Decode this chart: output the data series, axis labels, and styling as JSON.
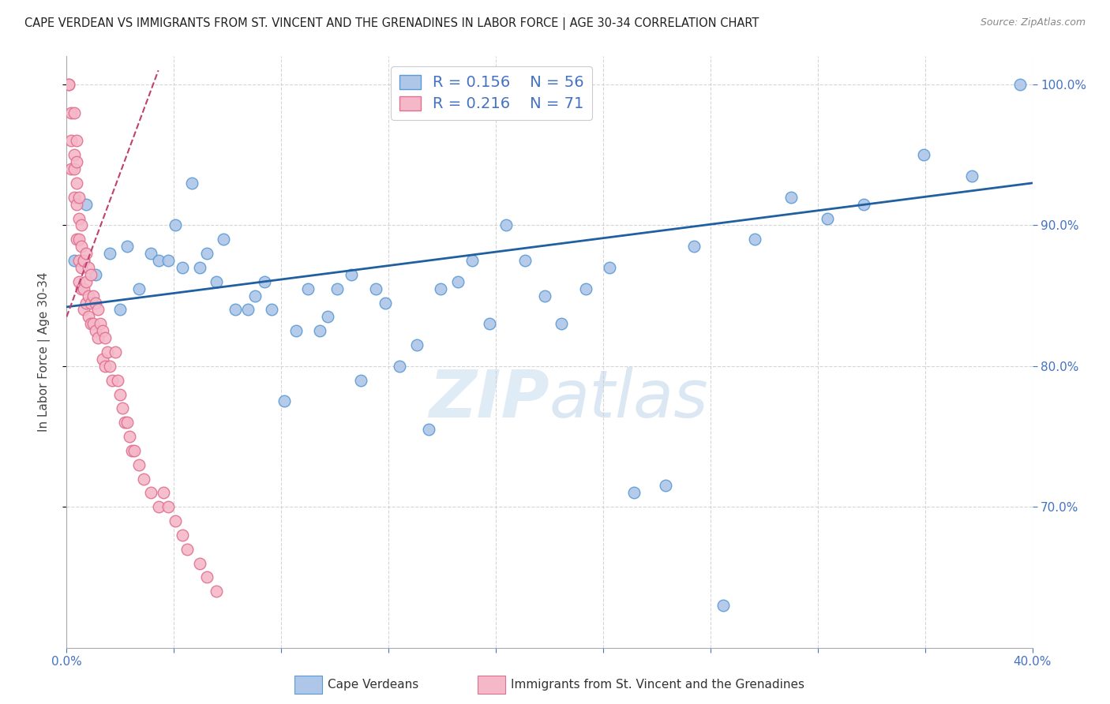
{
  "title": "CAPE VERDEAN VS IMMIGRANTS FROM ST. VINCENT AND THE GRENADINES IN LABOR FORCE | AGE 30-34 CORRELATION CHART",
  "source": "Source: ZipAtlas.com",
  "ylabel": "In Labor Force | Age 30-34",
  "xlim": [
    0.0,
    0.4
  ],
  "ylim": [
    0.6,
    1.02
  ],
  "watermark_zip": "ZIP",
  "watermark_atlas": "atlas",
  "legend_R1": "0.156",
  "legend_N1": "56",
  "legend_R2": "0.216",
  "legend_N2": "71",
  "blue_color": "#aec6e8",
  "blue_edge": "#5b9bd5",
  "pink_color": "#f4b8c8",
  "pink_edge": "#e07090",
  "trend_blue": "#2060a0",
  "trend_pink": "#c04070",
  "blue_scatter_x": [
    0.003,
    0.008,
    0.012,
    0.018,
    0.022,
    0.025,
    0.03,
    0.035,
    0.038,
    0.042,
    0.045,
    0.048,
    0.052,
    0.055,
    0.058,
    0.062,
    0.065,
    0.07,
    0.075,
    0.078,
    0.082,
    0.085,
    0.09,
    0.095,
    0.1,
    0.105,
    0.108,
    0.112,
    0.118,
    0.122,
    0.128,
    0.132,
    0.138,
    0.145,
    0.15,
    0.155,
    0.162,
    0.168,
    0.175,
    0.182,
    0.19,
    0.198,
    0.205,
    0.215,
    0.225,
    0.235,
    0.248,
    0.26,
    0.272,
    0.285,
    0.3,
    0.315,
    0.33,
    0.355,
    0.375,
    0.395
  ],
  "blue_scatter_y": [
    0.875,
    0.915,
    0.865,
    0.88,
    0.84,
    0.885,
    0.855,
    0.88,
    0.875,
    0.875,
    0.9,
    0.87,
    0.93,
    0.87,
    0.88,
    0.86,
    0.89,
    0.84,
    0.84,
    0.85,
    0.86,
    0.84,
    0.775,
    0.825,
    0.855,
    0.825,
    0.835,
    0.855,
    0.865,
    0.79,
    0.855,
    0.845,
    0.8,
    0.815,
    0.755,
    0.855,
    0.86,
    0.875,
    0.83,
    0.9,
    0.875,
    0.85,
    0.83,
    0.855,
    0.87,
    0.71,
    0.715,
    0.885,
    0.63,
    0.89,
    0.92,
    0.905,
    0.915,
    0.95,
    0.935,
    1.0
  ],
  "pink_scatter_x": [
    0.001,
    0.001,
    0.002,
    0.002,
    0.002,
    0.003,
    0.003,
    0.003,
    0.003,
    0.004,
    0.004,
    0.004,
    0.004,
    0.004,
    0.005,
    0.005,
    0.005,
    0.005,
    0.005,
    0.006,
    0.006,
    0.006,
    0.006,
    0.007,
    0.007,
    0.007,
    0.007,
    0.008,
    0.008,
    0.008,
    0.009,
    0.009,
    0.009,
    0.01,
    0.01,
    0.01,
    0.011,
    0.011,
    0.012,
    0.012,
    0.013,
    0.013,
    0.014,
    0.015,
    0.015,
    0.016,
    0.016,
    0.017,
    0.018,
    0.019,
    0.02,
    0.021,
    0.022,
    0.023,
    0.024,
    0.025,
    0.026,
    0.027,
    0.028,
    0.03,
    0.032,
    0.035,
    0.038,
    0.04,
    0.042,
    0.045,
    0.048,
    0.05,
    0.055,
    0.058,
    0.062
  ],
  "pink_scatter_y": [
    1.0,
    1.0,
    0.98,
    0.96,
    0.94,
    0.98,
    0.95,
    0.94,
    0.92,
    0.96,
    0.945,
    0.93,
    0.915,
    0.89,
    0.92,
    0.905,
    0.89,
    0.875,
    0.86,
    0.9,
    0.885,
    0.87,
    0.855,
    0.875,
    0.875,
    0.855,
    0.84,
    0.88,
    0.86,
    0.845,
    0.87,
    0.85,
    0.835,
    0.865,
    0.845,
    0.83,
    0.85,
    0.83,
    0.845,
    0.825,
    0.84,
    0.82,
    0.83,
    0.825,
    0.805,
    0.82,
    0.8,
    0.81,
    0.8,
    0.79,
    0.81,
    0.79,
    0.78,
    0.77,
    0.76,
    0.76,
    0.75,
    0.74,
    0.74,
    0.73,
    0.72,
    0.71,
    0.7,
    0.71,
    0.7,
    0.69,
    0.68,
    0.67,
    0.66,
    0.65,
    0.64
  ],
  "num_xticks": 10,
  "title_fontsize": 10.5,
  "source_fontsize": 9,
  "axis_label_fontsize": 11,
  "tick_fontsize": 11
}
